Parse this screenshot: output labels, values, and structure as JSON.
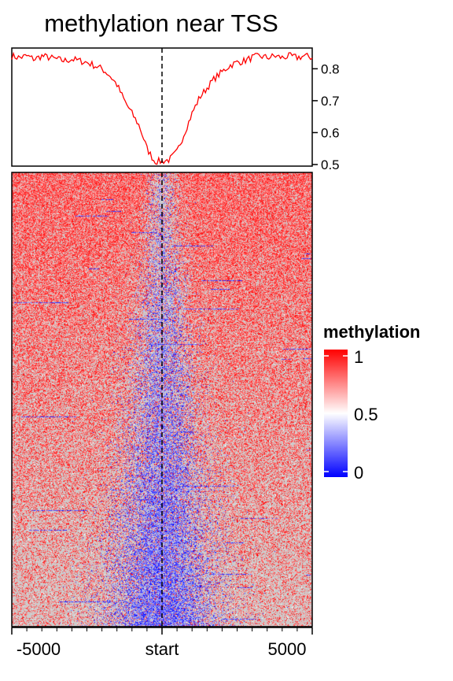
{
  "chart_data": [
    {
      "type": "line",
      "title": "methylation near TSS",
      "x": [
        -5000,
        -4750,
        -4500,
        -4250,
        -4000,
        -3750,
        -3500,
        -3250,
        -3000,
        -2750,
        -2500,
        -2250,
        -2000,
        -1750,
        -1500,
        -1250,
        -1000,
        -750,
        -500,
        -250,
        0,
        250,
        500,
        750,
        1000,
        1250,
        1500,
        1750,
        2000,
        2250,
        2500,
        2750,
        3000,
        3250,
        3500,
        3750,
        4000,
        4250,
        4500,
        4750,
        5000
      ],
      "values": [
        0.84,
        0.835,
        0.84,
        0.83,
        0.84,
        0.835,
        0.83,
        0.825,
        0.83,
        0.825,
        0.82,
        0.81,
        0.8,
        0.78,
        0.75,
        0.7,
        0.66,
        0.62,
        0.55,
        0.51,
        0.51,
        0.515,
        0.54,
        0.6,
        0.66,
        0.71,
        0.74,
        0.77,
        0.79,
        0.81,
        0.82,
        0.825,
        0.835,
        0.84,
        0.835,
        0.84,
        0.835,
        0.84,
        0.835,
        0.84,
        0.835
      ],
      "ylim": [
        0.495,
        0.865
      ],
      "yticks": [
        "0.8",
        "0.7",
        "0.6",
        "0.5"
      ],
      "line_color": "#ff0000",
      "vline_at": "start"
    },
    {
      "type": "heatmap",
      "xticks": [
        "-5000",
        "start",
        "5000"
      ],
      "legend": {
        "title": "methylation",
        "labels": [
          "1",
          "0.5",
          "0"
        ],
        "colors": {
          "high": "#ff0000",
          "mid": "#ffffff",
          "low": "#0000ff",
          "background": "#cccccc"
        }
      }
    }
  ]
}
